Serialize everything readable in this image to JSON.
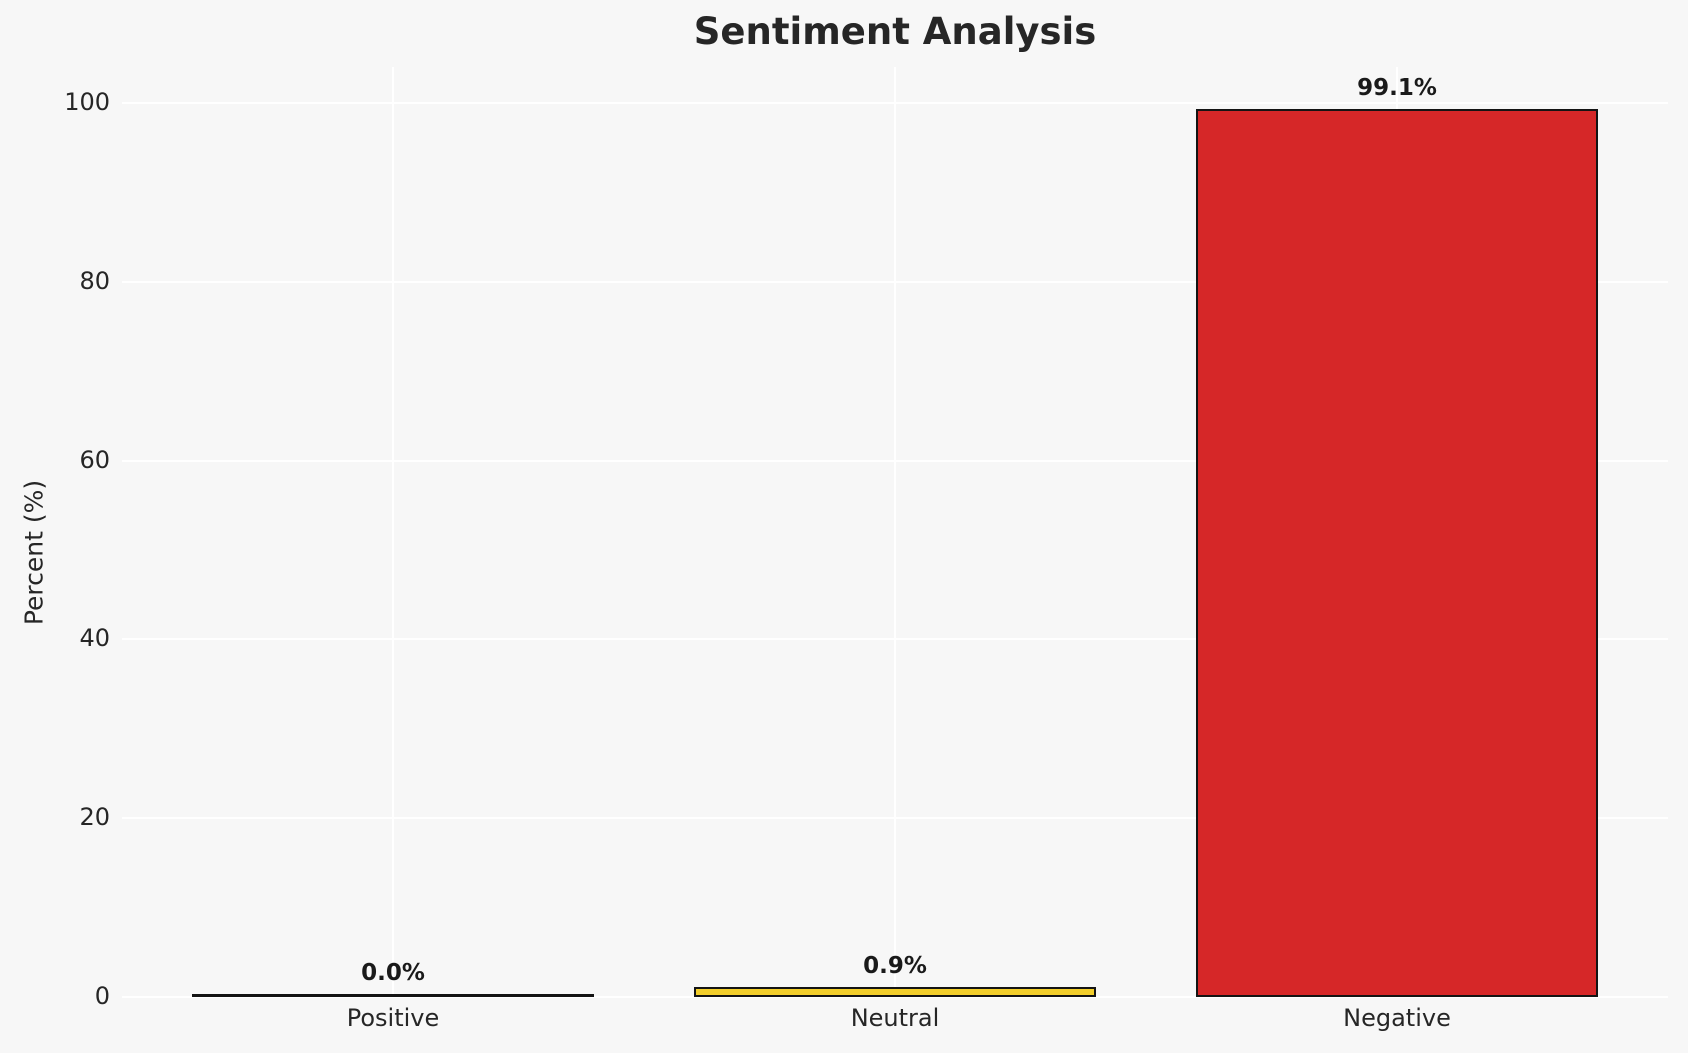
{
  "window": {
    "background_color": "#f7f7f7"
  },
  "chart_data": {
    "type": "bar",
    "title": "Sentiment Analysis",
    "xlabel": "",
    "ylabel": "Percent (%)",
    "categories": [
      "Positive",
      "Neutral",
      "Negative"
    ],
    "values": [
      0.0,
      0.9,
      99.1
    ],
    "value_labels": [
      "0.0%",
      "0.9%",
      "99.1%"
    ],
    "bar_colors": [
      "#8c8c8c",
      "#f2ce2b",
      "#d62728"
    ],
    "bar_edge_color": "#141414",
    "yticks": [
      0,
      20,
      40,
      60,
      80,
      100
    ],
    "ytick_labels": [
      "0",
      "20",
      "40",
      "60",
      "80",
      "100"
    ],
    "ylim": [
      0,
      104
    ],
    "grid": true,
    "gridline_color": "#ffffff",
    "legend": "none",
    "title_color": "#262626",
    "tick_color": "#262626"
  }
}
